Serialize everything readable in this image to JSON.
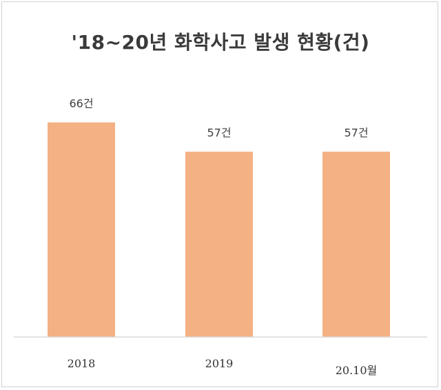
{
  "chart_data": {
    "type": "bar",
    "title": "'18~20년 화학사고 발생 현황(건)",
    "categories": [
      "2018",
      "2019",
      "20.10월"
    ],
    "values": [
      66,
      57,
      57
    ],
    "data_labels": [
      "66건",
      "57건",
      "57건"
    ],
    "xlabel": "",
    "ylabel": "",
    "ylim": [
      0,
      66
    ],
    "grid": false,
    "legend": "none",
    "colors": {
      "bar": "#f4b183",
      "axis": "#d9d9d9",
      "title": "#3a3a3a"
    }
  }
}
